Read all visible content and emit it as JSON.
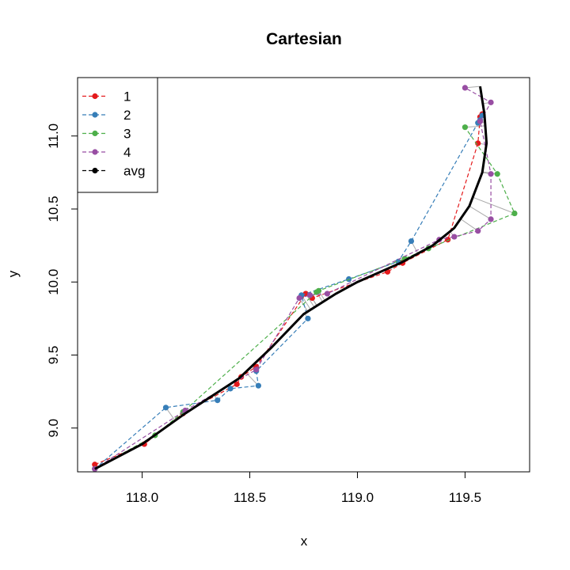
{
  "chart_data": {
    "type": "line",
    "title": "Cartesian",
    "xlabel": "x",
    "ylabel": "y",
    "xlim": [
      117.7,
      119.8
    ],
    "ylim": [
      8.7,
      11.4
    ],
    "xticks": [
      118.0,
      118.5,
      119.0,
      119.5
    ],
    "xtick_labels": [
      "118.0",
      "118.5",
      "119.0",
      "119.5"
    ],
    "yticks": [
      9.0,
      9.5,
      10.0,
      10.5,
      11.0
    ],
    "ytick_labels": [
      "9.0",
      "9.5",
      "10.0",
      "10.5",
      "11.0"
    ],
    "grid": false,
    "legend_position": "top-left",
    "legend": [
      {
        "label": "1",
        "color": "#e41a1c"
      },
      {
        "label": "2",
        "color": "#377eb8"
      },
      {
        "label": "3",
        "color": "#4daf4a"
      },
      {
        "label": "4",
        "color": "#984ea3"
      },
      {
        "label": "avg",
        "color": "#000000"
      }
    ],
    "connector_color": "#aaaaaa",
    "series": [
      {
        "name": "1",
        "color": "#e41a1c",
        "line": "dashed",
        "points": [
          [
            117.78,
            8.75
          ],
          [
            118.01,
            8.89
          ],
          [
            118.19,
            9.1
          ],
          [
            118.44,
            9.3
          ],
          [
            118.46,
            9.35
          ],
          [
            118.53,
            9.42
          ],
          [
            118.76,
            9.92
          ],
          [
            118.79,
            9.89
          ],
          [
            119.14,
            10.07
          ],
          [
            119.21,
            10.13
          ],
          [
            119.42,
            10.29
          ],
          [
            119.56,
            10.95
          ],
          [
            119.57,
            11.13
          ],
          [
            119.58,
            11.15
          ]
        ]
      },
      {
        "name": "2",
        "color": "#377eb8",
        "line": "dashed",
        "points": [
          [
            117.78,
            8.72
          ],
          [
            118.11,
            9.14
          ],
          [
            118.35,
            9.19
          ],
          [
            118.41,
            9.27
          ],
          [
            118.54,
            9.29
          ],
          [
            118.53,
            9.39
          ],
          [
            118.77,
            9.75
          ],
          [
            118.74,
            9.91
          ],
          [
            118.96,
            10.02
          ],
          [
            119.19,
            10.14
          ],
          [
            119.25,
            10.28
          ],
          [
            119.56,
            11.09
          ],
          [
            119.57,
            11.11
          ],
          [
            119.58,
            11.14
          ]
        ]
      },
      {
        "name": "3",
        "color": "#4daf4a",
        "line": "dashed",
        "points": [
          [
            117.78,
            8.72
          ],
          [
            118.06,
            8.95
          ],
          [
            118.19,
            9.11
          ],
          [
            118.81,
            9.93
          ],
          [
            118.82,
            9.94
          ],
          [
            119.22,
            10.16
          ],
          [
            119.33,
            10.23
          ],
          [
            119.73,
            10.47
          ],
          [
            119.65,
            10.74
          ],
          [
            119.5,
            11.06
          ]
        ]
      },
      {
        "name": "4",
        "color": "#984ea3",
        "line": "dashed",
        "points": [
          [
            117.78,
            8.72
          ],
          [
            118.2,
            9.12
          ],
          [
            118.53,
            9.4
          ],
          [
            118.73,
            9.89
          ],
          [
            118.78,
            9.91
          ],
          [
            118.86,
            9.92
          ],
          [
            119.38,
            10.29
          ],
          [
            119.45,
            10.31
          ],
          [
            119.56,
            10.35
          ],
          [
            119.62,
            10.43
          ],
          [
            119.62,
            10.74
          ],
          [
            119.57,
            11.1
          ],
          [
            119.62,
            11.23
          ],
          [
            119.5,
            11.33
          ]
        ]
      },
      {
        "name": "avg",
        "color": "#000000",
        "line": "solid",
        "points": [
          [
            117.78,
            8.72
          ],
          [
            118.0,
            8.89
          ],
          [
            118.2,
            9.1
          ],
          [
            118.45,
            9.34
          ],
          [
            118.6,
            9.55
          ],
          [
            118.75,
            9.78
          ],
          [
            118.9,
            9.92
          ],
          [
            119.0,
            10.0
          ],
          [
            119.2,
            10.13
          ],
          [
            119.35,
            10.25
          ],
          [
            119.45,
            10.37
          ],
          [
            119.52,
            10.52
          ],
          [
            119.58,
            10.75
          ],
          [
            119.6,
            10.95
          ],
          [
            119.59,
            11.15
          ],
          [
            119.57,
            11.34
          ]
        ]
      }
    ]
  }
}
